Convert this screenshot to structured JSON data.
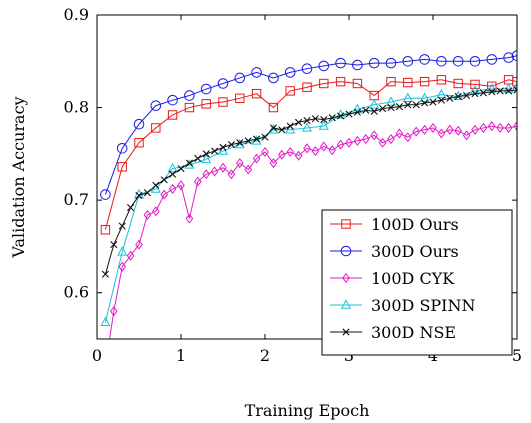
{
  "chart_data": {
    "type": "line",
    "xlabel": "Training Epoch",
    "ylabel": "Validation Accuracy",
    "xlim": [
      0,
      5
    ],
    "ylim": [
      0.55,
      0.9
    ],
    "x_ticks": [
      0,
      1,
      2,
      3,
      4,
      5
    ],
    "y_ticks": [
      0.6,
      0.7,
      0.8,
      0.9
    ],
    "x_tick_labels": [
      "0",
      "1",
      "2",
      "3",
      "4",
      "5"
    ],
    "y_tick_labels": [
      "0.6",
      "0.7",
      "0.8",
      "0.9"
    ],
    "grid": false,
    "legend_position": "bottom-right",
    "series": [
      {
        "name": "100D Ours",
        "color": "#e8191b",
        "marker": "square",
        "x": [
          0.1,
          0.3,
          0.5,
          0.7,
          0.9,
          1.1,
          1.3,
          1.5,
          1.7,
          1.9,
          2.1,
          2.3,
          2.5,
          2.7,
          2.9,
          3.1,
          3.3,
          3.5,
          3.7,
          3.9,
          4.1,
          4.3,
          4.5,
          4.7,
          4.9,
          5.0
        ],
        "y": [
          0.668,
          0.736,
          0.762,
          0.778,
          0.792,
          0.8,
          0.804,
          0.806,
          0.81,
          0.815,
          0.8,
          0.818,
          0.822,
          0.826,
          0.828,
          0.826,
          0.813,
          0.828,
          0.827,
          0.828,
          0.83,
          0.826,
          0.825,
          0.823,
          0.83,
          0.828
        ]
      },
      {
        "name": "300D Ours",
        "color": "#1a1ae6",
        "marker": "circle",
        "x": [
          0.1,
          0.3,
          0.5,
          0.7,
          0.9,
          1.1,
          1.3,
          1.5,
          1.7,
          1.9,
          2.1,
          2.3,
          2.5,
          2.7,
          2.9,
          3.1,
          3.3,
          3.5,
          3.7,
          3.9,
          4.1,
          4.3,
          4.5,
          4.7,
          4.9,
          5.0
        ],
        "y": [
          0.706,
          0.756,
          0.782,
          0.802,
          0.808,
          0.813,
          0.82,
          0.826,
          0.832,
          0.838,
          0.832,
          0.838,
          0.842,
          0.845,
          0.848,
          0.846,
          0.848,
          0.848,
          0.85,
          0.852,
          0.85,
          0.85,
          0.85,
          0.852,
          0.854,
          0.856
        ]
      },
      {
        "name": "100D CYK",
        "color": "#e31ac8",
        "marker": "diamond",
        "x": [
          0.1,
          0.2,
          0.3,
          0.4,
          0.5,
          0.6,
          0.7,
          0.8,
          0.9,
          1.0,
          1.1,
          1.2,
          1.3,
          1.4,
          1.5,
          1.6,
          1.7,
          1.8,
          1.9,
          2.0,
          2.1,
          2.2,
          2.3,
          2.4,
          2.5,
          2.6,
          2.7,
          2.8,
          2.9,
          3.0,
          3.1,
          3.2,
          3.3,
          3.4,
          3.5,
          3.6,
          3.7,
          3.8,
          3.9,
          4.0,
          4.1,
          4.2,
          4.3,
          4.4,
          4.5,
          4.6,
          4.7,
          4.8,
          4.9,
          5.0
        ],
        "y": [
          0.52,
          0.58,
          0.628,
          0.64,
          0.652,
          0.684,
          0.688,
          0.706,
          0.712,
          0.716,
          0.68,
          0.72,
          0.728,
          0.731,
          0.735,
          0.728,
          0.74,
          0.733,
          0.745,
          0.752,
          0.74,
          0.749,
          0.752,
          0.748,
          0.756,
          0.753,
          0.758,
          0.754,
          0.76,
          0.762,
          0.764,
          0.766,
          0.77,
          0.762,
          0.766,
          0.772,
          0.768,
          0.774,
          0.776,
          0.778,
          0.772,
          0.776,
          0.775,
          0.77,
          0.776,
          0.778,
          0.78,
          0.778,
          0.778,
          0.78
        ]
      },
      {
        "name": "300D SPINN",
        "color": "#17c2d8",
        "marker": "triangle",
        "x": [
          0.1,
          0.3,
          0.5,
          0.7,
          0.9,
          1.1,
          1.3,
          1.5,
          1.7,
          1.9,
          2.1,
          2.3,
          2.5,
          2.7,
          2.9,
          3.1,
          3.3,
          3.5,
          3.7,
          3.9,
          4.1,
          4.3,
          4.5,
          4.7,
          4.9,
          5.0
        ],
        "y": [
          0.568,
          0.644,
          0.706,
          0.712,
          0.734,
          0.738,
          0.744,
          0.753,
          0.76,
          0.764,
          0.776,
          0.776,
          0.778,
          0.78,
          0.792,
          0.798,
          0.803,
          0.806,
          0.81,
          0.81,
          0.814,
          0.812,
          0.818,
          0.82,
          0.82,
          0.822
        ]
      },
      {
        "name": "300D NSE",
        "color": "#111111",
        "marker": "cross",
        "x": [
          0.1,
          0.2,
          0.3,
          0.4,
          0.5,
          0.6,
          0.7,
          0.8,
          0.9,
          1.0,
          1.1,
          1.2,
          1.3,
          1.4,
          1.5,
          1.6,
          1.7,
          1.8,
          1.9,
          2.0,
          2.1,
          2.2,
          2.3,
          2.4,
          2.5,
          2.6,
          2.7,
          2.8,
          2.9,
          3.0,
          3.1,
          3.2,
          3.3,
          3.4,
          3.5,
          3.6,
          3.7,
          3.8,
          3.9,
          4.0,
          4.1,
          4.2,
          4.3,
          4.4,
          4.5,
          4.6,
          4.7,
          4.8,
          4.9,
          5.0
        ],
        "y": [
          0.62,
          0.652,
          0.672,
          0.692,
          0.705,
          0.708,
          0.716,
          0.722,
          0.728,
          0.734,
          0.74,
          0.745,
          0.75,
          0.753,
          0.757,
          0.76,
          0.762,
          0.764,
          0.766,
          0.768,
          0.778,
          0.776,
          0.78,
          0.784,
          0.786,
          0.788,
          0.787,
          0.789,
          0.791,
          0.793,
          0.795,
          0.797,
          0.796,
          0.799,
          0.8,
          0.801,
          0.803,
          0.803,
          0.805,
          0.806,
          0.808,
          0.81,
          0.812,
          0.813,
          0.815,
          0.816,
          0.817,
          0.818,
          0.818,
          0.819
        ]
      }
    ]
  }
}
